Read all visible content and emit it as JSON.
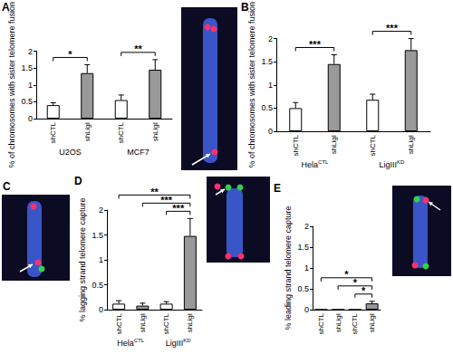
{
  "chart_data": [
    {
      "type": "bar",
      "panel": "A",
      "ylabel": "% of chromosomes with sister telomere fusion",
      "categories": [
        "shCTL",
        "shLigI",
        "shCTL",
        "shLigI"
      ],
      "groups": [
        {
          "label": "U2OS"
        },
        {
          "label": "MCF7"
        }
      ],
      "values": [
        0.4,
        1.35,
        0.55,
        1.45
      ],
      "errors": [
        0.07,
        0.25,
        0.15,
        0.3
      ],
      "colors": [
        "#ffffff",
        "#999999",
        "#ffffff",
        "#999999"
      ],
      "ylim": [
        0,
        2
      ],
      "yticks": [
        0,
        0.5,
        1,
        1.5,
        2
      ],
      "grid": false,
      "annotations": [
        {
          "label": "*",
          "from": 0,
          "to": 1
        },
        {
          "label": "**",
          "from": 2,
          "to": 3
        }
      ]
    },
    {
      "type": "bar",
      "panel": "B",
      "ylabel": "% of chromosomes with sister telomere fusion",
      "categories": [
        "shCTL",
        "shLigI",
        "shCTL",
        "shLigI"
      ],
      "groups": [
        {
          "label": "Hela",
          "sup": "CTL"
        },
        {
          "label": "LigIII",
          "sup": "KD"
        }
      ],
      "values": [
        0.5,
        1.45,
        0.68,
        1.75
      ],
      "errors": [
        0.12,
        0.2,
        0.12,
        0.25
      ],
      "colors": [
        "#ffffff",
        "#999999",
        "#ffffff",
        "#999999"
      ],
      "ylim": [
        0,
        2
      ],
      "yticks": [
        0,
        0.5,
        1,
        1.5,
        2
      ],
      "grid": false,
      "annotations": [
        {
          "label": "***",
          "from": 0,
          "to": 1
        },
        {
          "label": "***",
          "from": 2,
          "to": 3
        }
      ]
    },
    {
      "type": "bar",
      "panel": "D",
      "ylabel": "% lagging strand telomere capture",
      "categories": [
        "shCTL",
        "shLigI",
        "shCTL",
        "shLigI"
      ],
      "groups": [
        {
          "label": "Hela",
          "sup": "CTL"
        },
        {
          "label": "LigIII",
          "sup": "KD"
        }
      ],
      "values": [
        0.12,
        0.08,
        0.12,
        1.48
      ],
      "errors": [
        0.06,
        0.05,
        0.04,
        0.35
      ],
      "colors": [
        "#ffffff",
        "#999999",
        "#ffffff",
        "#999999"
      ],
      "ylim": [
        0,
        2
      ],
      "yticks": [
        0,
        0.5,
        1,
        1.5,
        2
      ],
      "grid": false,
      "annotations": [
        {
          "label": "**",
          "from": 0,
          "to": 3
        },
        {
          "label": "***",
          "from": 1,
          "to": 3
        },
        {
          "label": "***",
          "from": 2,
          "to": 3
        }
      ]
    },
    {
      "type": "bar",
      "panel": "E",
      "ylabel": "% leading strand telomere capture",
      "categories": [
        "shCTL",
        "shLigI",
        "shCTL",
        "shLigI"
      ],
      "values": [
        0,
        0,
        0,
        0.15
      ],
      "errors": [
        0,
        0,
        0,
        0.05
      ],
      "colors": [
        "#ffffff",
        "#999999",
        "#ffffff",
        "#999999"
      ],
      "ylim": [
        0,
        2
      ],
      "yticks": [
        0,
        0.5,
        1,
        1.5,
        2
      ],
      "grid": false,
      "annotations": [
        {
          "label": "*",
          "from": 0,
          "to": 3
        },
        {
          "label": "*",
          "from": 1,
          "to": 3
        },
        {
          "label": "*",
          "from": 2,
          "to": 3
        }
      ]
    }
  ],
  "images": [
    {
      "panel": "C"
    }
  ]
}
